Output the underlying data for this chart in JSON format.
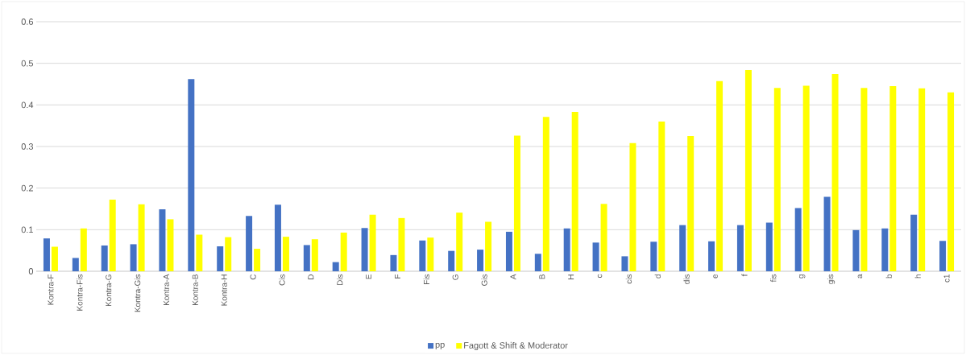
{
  "chart_data": {
    "type": "bar",
    "categories": [
      "Kontra-F",
      "Kontra-Fis",
      "Kontra-G",
      "Kontra-Gis",
      "Kontra-A",
      "Kontra-B",
      "Kontra-H",
      "C",
      "Cis",
      "D",
      "Dis",
      "E",
      "F",
      "Fis",
      "G",
      "Gis",
      "A",
      "B",
      "H",
      "c",
      "cis",
      "d",
      "dis",
      "e",
      "f",
      "fis",
      "g",
      "gis",
      "a",
      "b",
      "h",
      "c1"
    ],
    "series": [
      {
        "name": "pp",
        "color": "#4472c4",
        "values": [
          0.079,
          0.032,
          0.062,
          0.065,
          0.149,
          0.462,
          0.06,
          0.133,
          0.16,
          0.063,
          0.022,
          0.104,
          0.039,
          0.074,
          0.049,
          0.052,
          0.095,
          0.042,
          0.103,
          0.069,
          0.036,
          0.071,
          0.111,
          0.072,
          0.111,
          0.117,
          0.152,
          0.179,
          0.099,
          0.103,
          0.136,
          0.073
        ]
      },
      {
        "name": "Fagott & Shift & Moderator",
        "color": "#ffff00",
        "values": [
          0.059,
          0.103,
          0.172,
          0.161,
          0.125,
          0.088,
          0.082,
          0.054,
          0.083,
          0.077,
          0.093,
          0.136,
          0.128,
          0.081,
          0.141,
          0.119,
          0.326,
          0.371,
          0.383,
          0.162,
          0.308,
          0.36,
          0.325,
          0.457,
          0.484,
          0.441,
          0.446,
          0.474,
          0.441,
          0.445,
          0.44,
          0.43
        ]
      }
    ],
    "ylim": [
      0,
      0.6
    ],
    "yticks": [
      0,
      0.1,
      0.2,
      0.3,
      0.4,
      0.5,
      0.6
    ],
    "grid": "y",
    "legend": "bottom"
  }
}
